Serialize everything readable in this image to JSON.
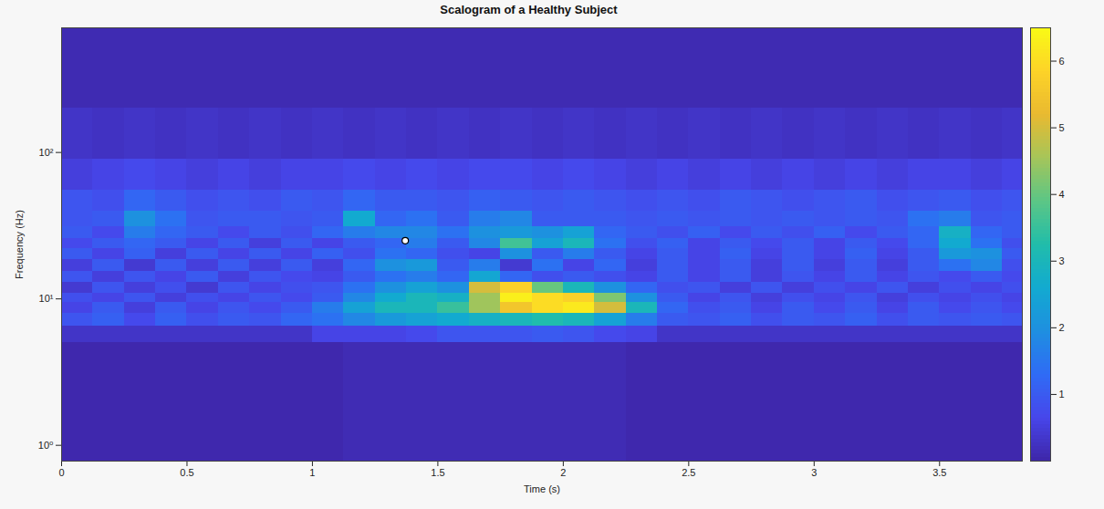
{
  "chart_data": {
    "type": "heatmap",
    "title": "Scalogram of a Healthy Subject",
    "x_label": "Time (s)",
    "y_label": "Frequency (Hz)",
    "log": "y",
    "xlim": [
      0,
      3.83
    ],
    "xticks": [
      0,
      0.5,
      1,
      1.5,
      2,
      2.5,
      3,
      3.5
    ],
    "ylim": [
      0.78,
      710
    ],
    "yticks": [
      {
        "value": 1,
        "label": "10⁰"
      },
      {
        "value": 10,
        "label": "10¹"
      },
      {
        "value": 100,
        "label": "10²"
      }
    ],
    "x_bins": [
      0,
      0.125,
      0.25,
      0.375,
      0.5,
      0.625,
      0.75,
      0.875,
      1,
      1.125,
      1.25,
      1.375,
      1.5,
      1.625,
      1.75,
      1.875,
      2,
      2.125,
      2.25,
      2.375,
      2.5,
      2.625,
      2.75,
      2.875,
      3,
      3.125,
      3.25,
      3.375,
      3.5,
      3.625,
      3.75,
      3.83
    ],
    "y_bins": [
      0.78,
      5,
      6.5,
      8,
      9.5,
      11,
      13,
      15.5,
      18.5,
      22,
      26,
      31,
      40,
      55,
      90,
      200,
      710
    ],
    "values": [
      [
        0.05,
        0.05,
        0.05,
        0.05,
        0.05,
        0.05,
        0.05,
        0.05,
        0.05,
        0.12,
        0.12,
        0.12,
        0.12,
        0.12,
        0.12,
        0.12,
        0.12,
        0.12,
        0.05,
        0.05,
        0.05,
        0.05,
        0.05,
        0.05,
        0.05,
        0.05,
        0.05,
        0.05,
        0.05,
        0.05,
        0.05
      ],
      [
        0.3,
        0.3,
        0.3,
        0.3,
        0.3,
        0.3,
        0.3,
        0.3,
        0.6,
        0.6,
        0.6,
        0.7,
        0.9,
        0.9,
        0.9,
        1.0,
        0.9,
        0.7,
        0.6,
        0.3,
        0.3,
        0.3,
        0.3,
        0.3,
        0.3,
        0.3,
        0.3,
        0.3,
        0.3,
        0.3,
        0.3
      ],
      [
        0.9,
        1.1,
        0.7,
        1.1,
        0.8,
        1.0,
        0.9,
        1.2,
        1.4,
        1.8,
        2.2,
        2.4,
        2.6,
        2.8,
        3.0,
        3.2,
        3.0,
        2.4,
        1.6,
        1.0,
        0.9,
        1.1,
        0.8,
        1.0,
        0.9,
        1.1,
        0.8,
        1.0,
        0.9,
        1.0,
        0.9
      ],
      [
        0.6,
        1.0,
        0.5,
        1.0,
        0.6,
        0.9,
        0.7,
        1.0,
        1.6,
        2.4,
        3.0,
        3.0,
        3.5,
        4.5,
        5.5,
        6.0,
        6.2,
        5.0,
        3.0,
        1.2,
        0.8,
        1.0,
        0.6,
        1.0,
        0.7,
        1.0,
        0.6,
        1.0,
        0.7,
        0.9,
        0.7
      ],
      [
        0.8,
        0.6,
        0.9,
        0.5,
        0.8,
        0.6,
        0.9,
        0.7,
        1.0,
        1.8,
        2.6,
        3.0,
        2.8,
        4.5,
        6.3,
        6.0,
        5.8,
        4.2,
        2.0,
        1.0,
        0.6,
        0.9,
        0.5,
        0.8,
        0.6,
        0.9,
        0.5,
        0.8,
        0.6,
        0.8,
        0.6
      ],
      [
        0.4,
        0.9,
        0.5,
        0.8,
        0.4,
        0.9,
        0.6,
        0.8,
        0.9,
        1.4,
        2.0,
        2.4,
        2.0,
        5.0,
        5.8,
        4.0,
        3.0,
        2.0,
        1.2,
        0.8,
        0.9,
        0.5,
        0.9,
        0.5,
        0.8,
        0.6,
        0.9,
        0.5,
        0.8,
        0.6,
        0.8
      ],
      [
        0.9,
        0.5,
        0.9,
        0.6,
        1.0,
        0.5,
        0.9,
        0.7,
        0.6,
        1.0,
        1.4,
        1.6,
        1.2,
        2.5,
        1.2,
        0.8,
        1.0,
        0.8,
        0.6,
        1.0,
        0.6,
        1.0,
        0.5,
        0.9,
        0.6,
        1.0,
        0.6,
        0.9,
        0.7,
        1.0,
        0.7
      ],
      [
        0.5,
        1.0,
        0.4,
        1.0,
        0.5,
        1.0,
        0.5,
        1.0,
        0.5,
        1.2,
        2.0,
        2.2,
        1.0,
        1.6,
        0.4,
        1.4,
        0.6,
        1.2,
        0.5,
        1.0,
        0.6,
        1.0,
        0.5,
        1.0,
        0.5,
        1.0,
        0.5,
        1.0,
        1.4,
        1.8,
        0.8
      ],
      [
        1.0,
        0.6,
        1.1,
        0.5,
        1.0,
        0.6,
        1.0,
        0.6,
        1.1,
        0.8,
        1.4,
        1.2,
        0.8,
        0.6,
        2.0,
        1.0,
        1.6,
        1.0,
        0.6,
        1.0,
        0.6,
        1.1,
        0.6,
        1.0,
        0.6,
        1.1,
        0.6,
        1.0,
        2.2,
        2.0,
        1.0
      ],
      [
        0.7,
        1.0,
        1.2,
        1.0,
        0.6,
        1.0,
        0.5,
        1.0,
        0.6,
        1.0,
        1.2,
        1.6,
        1.0,
        1.8,
        3.6,
        2.4,
        3.0,
        1.4,
        0.8,
        1.1,
        0.6,
        1.0,
        0.7,
        1.0,
        0.6,
        1.0,
        0.7,
        1.2,
        2.6,
        1.4,
        0.8
      ],
      [
        1.0,
        0.7,
        1.6,
        1.2,
        1.0,
        0.7,
        1.0,
        0.8,
        1.2,
        1.6,
        1.8,
        1.8,
        1.4,
        2.0,
        2.2,
        2.0,
        2.4,
        1.2,
        1.0,
        0.8,
        1.1,
        0.7,
        1.0,
        0.8,
        1.1,
        0.7,
        1.0,
        1.2,
        2.8,
        1.2,
        1.0
      ],
      [
        0.9,
        1.0,
        2.0,
        1.4,
        0.9,
        1.0,
        1.0,
        0.9,
        1.0,
        2.6,
        1.2,
        1.4,
        1.0,
        1.6,
        1.8,
        1.0,
        1.0,
        1.0,
        0.9,
        1.0,
        0.9,
        1.0,
        0.9,
        1.0,
        0.9,
        1.0,
        0.9,
        1.4,
        1.6,
        0.9,
        1.0
      ],
      [
        0.9,
        0.8,
        1.2,
        1.0,
        0.8,
        0.9,
        0.8,
        1.0,
        0.9,
        1.2,
        1.0,
        1.0,
        0.9,
        1.1,
        1.0,
        0.9,
        1.0,
        0.9,
        0.8,
        0.9,
        0.8,
        1.0,
        0.9,
        0.8,
        0.9,
        1.0,
        0.8,
        0.9,
        1.0,
        0.8,
        0.9
      ],
      [
        0.5,
        0.6,
        0.7,
        0.6,
        0.5,
        0.6,
        0.5,
        0.6,
        0.6,
        0.7,
        0.6,
        0.7,
        0.6,
        0.7,
        0.7,
        0.6,
        0.7,
        0.6,
        0.5,
        0.6,
        0.5,
        0.6,
        0.5,
        0.6,
        0.5,
        0.6,
        0.5,
        0.6,
        0.6,
        0.5,
        0.6
      ],
      [
        0.3,
        0.25,
        0.3,
        0.25,
        0.3,
        0.25,
        0.3,
        0.25,
        0.3,
        0.25,
        0.3,
        0.25,
        0.3,
        0.25,
        0.3,
        0.25,
        0.3,
        0.25,
        0.3,
        0.25,
        0.3,
        0.25,
        0.3,
        0.25,
        0.3,
        0.25,
        0.3,
        0.25,
        0.3,
        0.25,
        0.3
      ],
      [
        0.1,
        0.1,
        0.1,
        0.1,
        0.1,
        0.1,
        0.1,
        0.1,
        0.1,
        0.1,
        0.1,
        0.1,
        0.1,
        0.1,
        0.1,
        0.1,
        0.1,
        0.1,
        0.1,
        0.1,
        0.1,
        0.1,
        0.1,
        0.1,
        0.1,
        0.1,
        0.1,
        0.1,
        0.1,
        0.1,
        0.1
      ]
    ],
    "color_range": [
      0,
      6.5
    ],
    "color_ticks": [
      1,
      2,
      3,
      4,
      5,
      6
    ],
    "points": [
      {
        "x": 1.37,
        "y": 25
      }
    ]
  }
}
